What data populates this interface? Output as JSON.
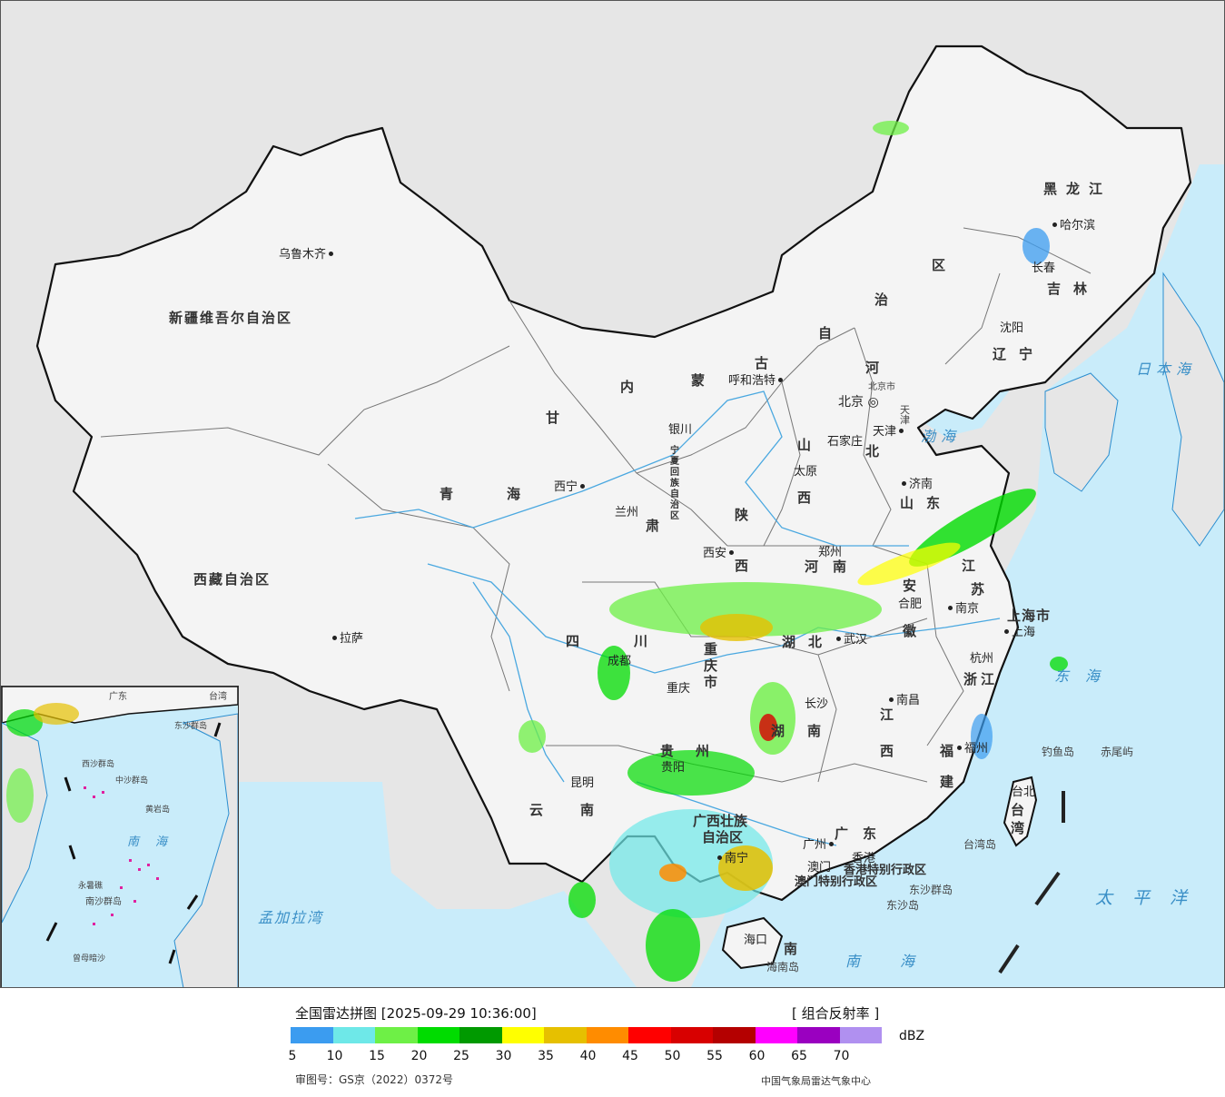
{
  "map": {
    "colors": {
      "land": "#f4f4f4",
      "outside": "#e6e6e6",
      "sea": "#c9ecfa",
      "border": "#111111",
      "river": "#4aa8e0"
    },
    "provinces": [
      "新疆维吾尔自治区",
      "西藏自治区",
      "青海",
      "甘肃",
      "内蒙古自治区",
      "黑龙江",
      "吉林",
      "辽宁",
      "河北",
      "北京",
      "天津",
      "山西",
      "山东",
      "河南",
      "陕西",
      "宁夏回族自治区",
      "四川",
      "重庆市",
      "湖北",
      "安徽",
      "江苏",
      "上海市",
      "浙江",
      "江西",
      "湖南",
      "贵州",
      "云南",
      "广西壮族自治区",
      "广东",
      "福建",
      "台湾",
      "海南",
      "香港特别行政区",
      "澳门特别行政区"
    ],
    "cities": [
      "乌鲁木齐",
      "拉萨",
      "西宁",
      "兰州",
      "银川",
      "呼和浩特",
      "北京",
      "天津",
      "石家庄",
      "太原",
      "济南",
      "郑州",
      "西安",
      "成都",
      "重庆",
      "武汉",
      "合肥",
      "南京",
      "上海",
      "杭州",
      "南昌",
      "长沙",
      "贵阳",
      "昆明",
      "南宁",
      "广州",
      "福州",
      "台北",
      "海口",
      "香港",
      "澳门",
      "哈尔滨",
      "长春",
      "沈阳"
    ],
    "seas": [
      "日本海",
      "渤海",
      "东海",
      "太平洋",
      "南海",
      "孟加拉湾"
    ],
    "islands": [
      "钓鱼岛",
      "赤尾屿",
      "台湾岛",
      "海南岛",
      "东沙群岛"
    ]
  },
  "labels": {
    "xinjiang": "新疆维吾尔自治区",
    "xizang": "西藏自治区",
    "qinghai_a": "青",
    "qinghai_b": "海",
    "gansu_a": "甘",
    "gansu_b": "肃",
    "nmg_1": "内",
    "nmg_2": "蒙",
    "nmg_3": "古",
    "nmg_4": "自",
    "nmg_5": "治",
    "nmg_6": "区",
    "heilongjiang": "黑龙江",
    "jilin": "吉林",
    "liaoning": "辽宁",
    "hebei_a": "河",
    "hebei_b": "北",
    "shanxi_a": "山",
    "shanxi_b": "西",
    "shandong": "山东",
    "henan": "河南",
    "shaanxi_a": "陕",
    "shaanxi_b": "西",
    "ningxia": "宁夏回族自治区",
    "sichuan_a": "四",
    "sichuan_b": "川",
    "chongqing": "重庆市",
    "hubei": "湖北",
    "anhui_a": "安",
    "anhui_b": "徽",
    "jiangsu_a": "江",
    "jiangsu_b": "苏",
    "shanghai": "上海市",
    "zhejiang": "浙江",
    "jiangxi_a": "江",
    "jiangxi_b": "西",
    "hunan_a": "湖",
    "hunan_b": "南",
    "guizhou_a": "贵",
    "guizhou_b": "州",
    "yunnan_a": "云",
    "yunnan_b": "南",
    "guangxi_a": "广西壮族",
    "guangxi_b": "自治区",
    "guangdong": "广东",
    "fujian_a": "福",
    "fujian_b": "建",
    "taiwan_a": "台",
    "taiwan_b": "湾",
    "hainan": "南",
    "hk_sar": "香港特别行政区",
    "macau_sar": "澳门特别行政区",
    "beijing_city": "北京市",
    "tianjin_city": "天津",
    "sea_japan": "日本海",
    "sea_bohai": "渤海",
    "sea_east": "东海",
    "sea_pacific": "太平洋",
    "sea_south": "南海",
    "sea_bengal": "孟加拉湾",
    "isl_diaoyu": "钓鱼岛",
    "isl_chiwei": "赤尾屿",
    "isl_taiwan": "台湾岛",
    "isl_hainan": "海南岛",
    "isl_dongsha1": "东沙群岛",
    "isl_dongsha2": "东沙岛",
    "c_urumqi": "乌鲁木齐",
    "c_lhasa": "拉萨",
    "c_xining": "西宁",
    "c_lanzhou": "兰州",
    "c_yinchuan": "银川",
    "c_hohhot": "呼和浩特",
    "c_beijing": "北京",
    "c_tianjin": "天津",
    "c_shijiazhuang": "石家庄",
    "c_taiyuan": "太原",
    "c_jinan": "济南",
    "c_zhengzhou": "郑州",
    "c_xian": "西安",
    "c_chengdu": "成都",
    "c_chongqing": "重庆",
    "c_wuhan": "武汉",
    "c_hefei": "合肥",
    "c_nanjing": "南京",
    "c_shanghai": "上海",
    "c_hangzhou": "杭州",
    "c_nanchang": "南昌",
    "c_changsha": "长沙",
    "c_guiyang": "贵阳",
    "c_kunming": "昆明",
    "c_nanning": "南宁",
    "c_guangzhou": "广州",
    "c_fuzhou": "福州",
    "c_taipei": "台北",
    "c_haikou": "海口",
    "c_hongkong": "香港",
    "c_macau": "澳门",
    "c_harbin": "哈尔滨",
    "c_changchun": "长春",
    "c_shenyang": "沈阳",
    "inset_south_sea": "南海",
    "inset_zhongsha": "中沙群岛",
    "inset_huangyan": "黄岩岛",
    "inset_nansha": "南沙群岛",
    "inset_zengmu": "曾母暗沙",
    "inset_taiwan": "台湾",
    "inset_guangdong": "广东",
    "inset_dongsha": "东沙群岛",
    "inset_xisha": "西沙群岛",
    "inset_yongshu": "永暑礁"
  },
  "legend": {
    "title": "全国雷达拼图 [2025-09-29 10:36:00]",
    "product": "[ 组合反射率 ]",
    "unit": "dBZ",
    "colors": [
      "#3b9cf0",
      "#6ee8e8",
      "#6ef046",
      "#00dc00",
      "#009a00",
      "#ffff00",
      "#e6c000",
      "#ff8c00",
      "#ff0000",
      "#d80000",
      "#b40000",
      "#ff00ff",
      "#9a00c0",
      "#b090f0"
    ],
    "ticks": [
      "5",
      "10",
      "15",
      "20",
      "25",
      "30",
      "35",
      "40",
      "45",
      "50",
      "55",
      "60",
      "65",
      "70"
    ],
    "review_number": "审图号：GS京（2022）0372号",
    "producer": "中国气象局雷达气象中心"
  }
}
